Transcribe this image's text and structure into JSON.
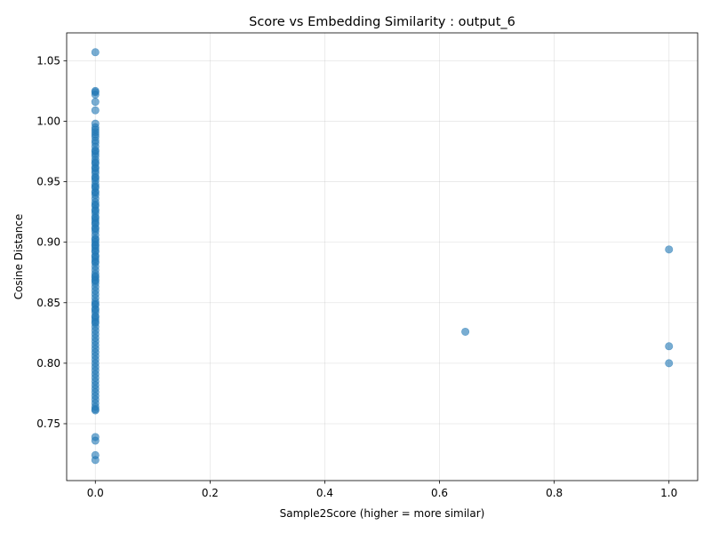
{
  "chart_data": {
    "type": "scatter",
    "title": "Score vs Embedding Similarity : output_6",
    "xlabel": "Sample2Score (higher = more similar)",
    "ylabel": "Cosine Distance",
    "xlim": [
      -0.05,
      1.05
    ],
    "ylim": [
      0.703,
      1.073
    ],
    "xticks": [
      0.0,
      0.2,
      0.4,
      0.6,
      0.8,
      1.0
    ],
    "xtick_labels": [
      "0.0",
      "0.2",
      "0.4",
      "0.6",
      "0.8",
      "1.0"
    ],
    "yticks": [
      0.75,
      0.8,
      0.85,
      0.9,
      0.95,
      1.0,
      1.05
    ],
    "ytick_labels": [
      "0.75",
      "0.80",
      "0.85",
      "0.90",
      "0.95",
      "1.00",
      "1.05"
    ],
    "grid": true,
    "marker_color": "#1f77b4",
    "marker_alpha": 0.6,
    "points": {
      "x": [
        0,
        0,
        0,
        0,
        0,
        0,
        0,
        0,
        0,
        0,
        0,
        0,
        0,
        0,
        0,
        0,
        0,
        0,
        0,
        0,
        0,
        0,
        0,
        0,
        0,
        0,
        0,
        0,
        0,
        0,
        0,
        0,
        0,
        0,
        0,
        0,
        0,
        0,
        0,
        0,
        0,
        0,
        0,
        0,
        0,
        0,
        0,
        0,
        0,
        0,
        0,
        0,
        0,
        0,
        0,
        0,
        0,
        0,
        0,
        0,
        0,
        0,
        0,
        0,
        0,
        0,
        0,
        0,
        0,
        0,
        0,
        0,
        0,
        0,
        0,
        0,
        0,
        0,
        0,
        0,
        0,
        0,
        0,
        0,
        0,
        0,
        0,
        0,
        0,
        0,
        0,
        0,
        0,
        0,
        0,
        0,
        0,
        0,
        0,
        0,
        0,
        0,
        0,
        0,
        0,
        0,
        0,
        0,
        0,
        0,
        0,
        0,
        0,
        0,
        0,
        0,
        0.645,
        1.0,
        1.0,
        1.0
      ],
      "y": [
        1.057,
        1.025,
        1.024,
        1.022,
        1.016,
        1.009,
        0.998,
        0.995,
        0.993,
        0.991,
        0.989,
        0.987,
        0.982,
        0.979,
        0.976,
        0.973,
        0.971,
        0.968,
        0.965,
        0.962,
        0.959,
        0.957,
        0.954,
        0.951,
        0.948,
        0.945,
        0.942,
        0.939,
        0.936,
        0.933,
        0.93,
        0.927,
        0.924,
        0.921,
        0.918,
        0.915,
        0.912,
        0.909,
        0.906,
        0.903,
        0.9,
        0.898,
        0.895,
        0.892,
        0.889,
        0.886,
        0.883,
        0.88,
        0.877,
        0.874,
        0.871,
        0.868,
        0.866,
        0.863,
        0.86,
        0.857,
        0.854,
        0.851,
        0.848,
        0.845,
        0.842,
        0.839,
        0.836,
        0.833,
        0.83,
        0.827,
        0.824,
        0.821,
        0.818,
        0.815,
        0.812,
        0.809,
        0.806,
        0.803,
        0.8,
        0.797,
        0.794,
        0.791,
        0.788,
        0.785,
        0.782,
        0.779,
        0.776,
        0.773,
        0.77,
        0.767,
        0.764,
        0.762,
        0.761,
        0.739,
        0.736,
        0.724,
        0.72,
        0.869,
        0.872,
        0.884,
        0.888,
        0.893,
        0.897,
        0.902,
        0.911,
        0.916,
        0.92,
        0.926,
        0.931,
        0.941,
        0.946,
        0.953,
        0.961,
        0.966,
        0.975,
        0.984,
        0.849,
        0.844,
        0.838,
        0.834,
        0.826,
        0.894,
        0.814,
        0.8
      ]
    }
  }
}
